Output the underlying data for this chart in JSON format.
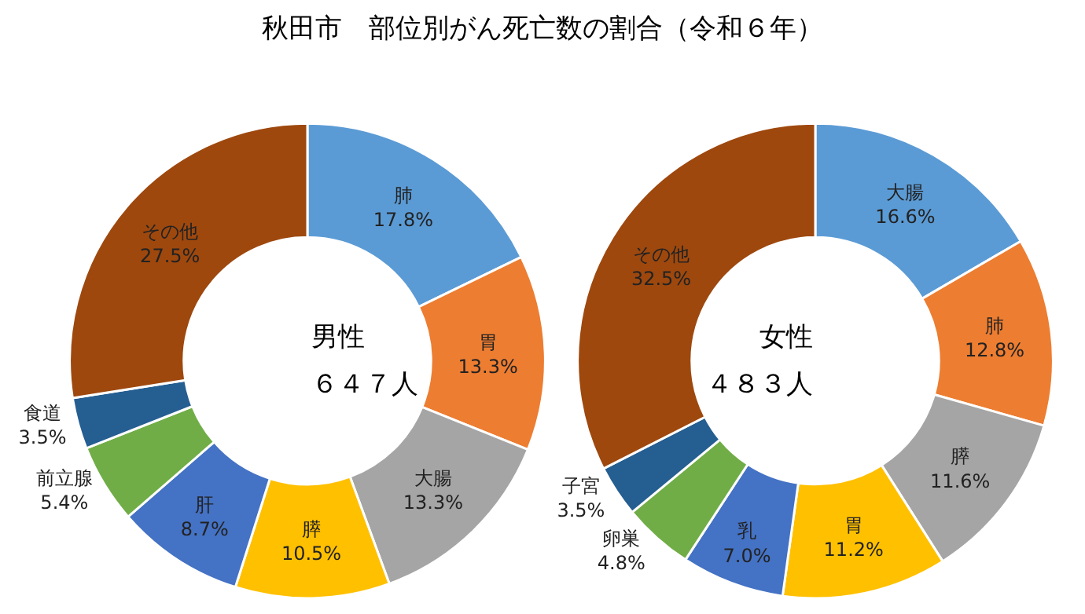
{
  "chart_data": [
    {
      "type": "donut",
      "title": "秋田市　部位別がん死亡数の割合（令和６年）",
      "annotations": [
        "男性",
        "６４７人"
      ],
      "value_labels": [
        "17.8%",
        "13.3%",
        "13.3%",
        "10.5%",
        "8.7%",
        "5.4%",
        "3.5%",
        "27.5%"
      ],
      "legend": false,
      "categories": [
        "肺",
        "胃",
        "大腸",
        "膵",
        "肝",
        "前立腺",
        "食道",
        "その他"
      ],
      "values": [
        17.8,
        13.3,
        13.3,
        10.5,
        8.7,
        5.4,
        3.5,
        27.5
      ],
      "colors": [
        "#5b9bd5",
        "#ed7d31",
        "#a5a5a5",
        "#ffc000",
        "#4472c4",
        "#70ad47",
        "#255e91",
        "#9e480e"
      ]
    },
    {
      "type": "donut",
      "annotations": [
        "女性",
        "４８３人"
      ],
      "value_labels": [
        "16.6%",
        "12.8%",
        "11.6%",
        "11.2%",
        "7.0%",
        "4.8%",
        "3.5%",
        "32.5%"
      ],
      "legend": false,
      "categories": [
        "大腸",
        "肺",
        "膵",
        "胃",
        "乳",
        "卵巣",
        "子宮",
        "その他"
      ],
      "values": [
        16.6,
        12.8,
        11.6,
        11.2,
        7.0,
        4.8,
        3.5,
        32.5
      ],
      "colors": [
        "#5b9bd5",
        "#ed7d31",
        "#a5a5a5",
        "#ffc000",
        "#4472c4",
        "#70ad47",
        "#255e91",
        "#9e480e"
      ]
    }
  ]
}
